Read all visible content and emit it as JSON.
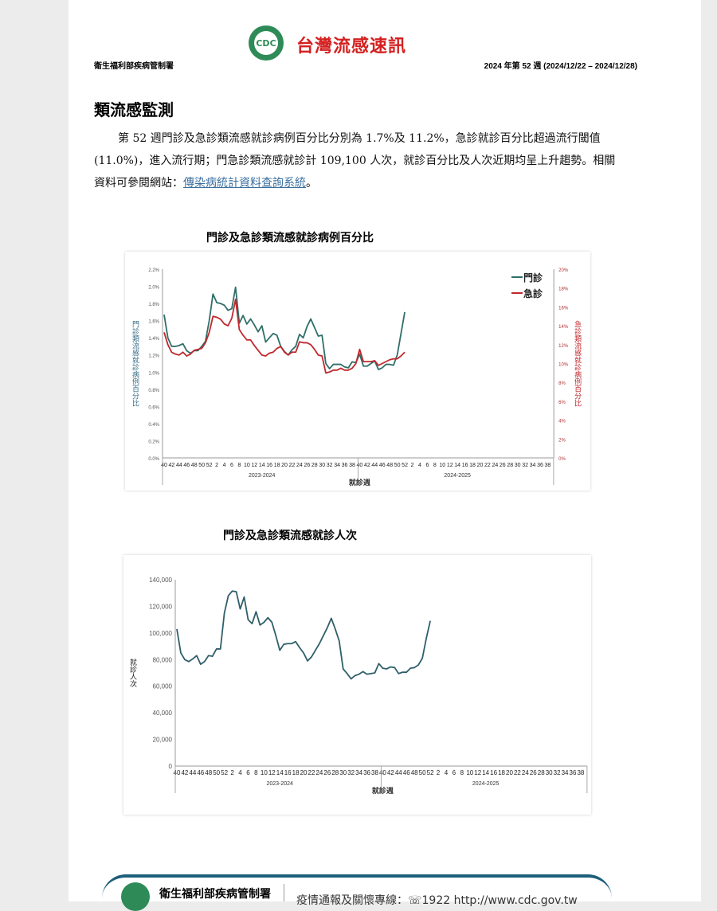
{
  "header": {
    "brand": "台灣流感速訊",
    "org": "衛生福利部疾病管制署",
    "week": "2024 年第 52 週 (2024/12/22 – 2024/12/28)",
    "logo_text": "CDC"
  },
  "section": {
    "title": "類流感監測",
    "para_before": "第 52 週門診及急診類流感就診病例百分比分別為 1.7%及 11.2%，急診就診百分比超過流行閾值(11.0%)，進入流行期；門急診類流感就診計 109,100 人次，就診百分比及人次近期均呈上升趨勢。相關資料可參閱網站：",
    "link": "傳染病統計資料查詢系統",
    "para_after": "。"
  },
  "weeks": [
    "40",
    "41",
    "42",
    "43",
    "44",
    "45",
    "46",
    "47",
    "48",
    "49",
    "50",
    "51",
    "52",
    "1",
    "2",
    "3",
    "4",
    "5",
    "6",
    "7",
    "8",
    "9",
    "10",
    "11",
    "12",
    "13",
    "14",
    "15",
    "16",
    "17",
    "18",
    "19",
    "20",
    "21",
    "22",
    "23",
    "24",
    "25",
    "26",
    "27",
    "28",
    "29",
    "30",
    "31",
    "32",
    "33",
    "34",
    "35",
    "36",
    "37",
    "38",
    "39",
    "40",
    "41",
    "42",
    "43",
    "44",
    "45",
    "46",
    "47",
    "48",
    "49",
    "50",
    "51",
    "52"
  ],
  "tick_labels": [
    "40",
    "42",
    "44",
    "46",
    "48",
    "50",
    "52",
    "2",
    "4",
    "6",
    "8",
    "10",
    "12",
    "14",
    "16",
    "18",
    "20",
    "22",
    "24",
    "26",
    "28",
    "30",
    "32",
    "34",
    "36",
    "38"
  ],
  "seasons": [
    "2023-2024",
    "2024-2025"
  ],
  "chart_data": [
    {
      "type": "line",
      "title": "門診及急診類流感就診病例百分比",
      "xlabel": "就診週",
      "ylabel": "門診類流感就診病例百分比",
      "ylabel_right": "急診類流感就診病例百分比",
      "ylim": [
        0,
        2.2
      ],
      "ylim_right": [
        0,
        20
      ],
      "yticks": [
        "0.0%",
        "0.2%",
        "0.4%",
        "0.6%",
        "0.8%",
        "1.0%",
        "1.2%",
        "1.4%",
        "1.6%",
        "1.8%",
        "2.0%",
        "2.2%"
      ],
      "yticks_right": [
        "0%",
        "2%",
        "4%",
        "6%",
        "8%",
        "10%",
        "12%",
        "14%",
        "16%",
        "18%",
        "20%"
      ],
      "legend": "top-right",
      "series": [
        {
          "name": "門診",
          "axis": "left",
          "color": "#2f6f6a",
          "values": [
            1.67,
            1.4,
            1.3,
            1.3,
            1.31,
            1.33,
            1.25,
            1.22,
            1.25,
            1.25,
            1.3,
            1.36,
            1.6,
            1.91,
            1.81,
            1.8,
            1.78,
            1.72,
            1.74,
            1.99,
            1.57,
            1.66,
            1.56,
            1.62,
            1.55,
            1.47,
            1.54,
            1.35,
            1.4,
            1.45,
            1.43,
            1.3,
            1.24,
            1.2,
            1.26,
            1.3,
            1.44,
            1.4,
            1.53,
            1.62,
            1.52,
            1.42,
            1.43,
            1.1,
            1.04,
            1.09,
            1.09,
            1.09,
            1.06,
            1.05,
            1.12,
            1.11,
            1.21,
            1.07,
            1.07,
            1.1,
            1.13,
            1.03,
            1.05,
            1.09,
            1.09,
            1.08,
            1.2,
            1.45,
            1.7
          ]
        },
        {
          "name": "急診",
          "axis": "right",
          "color": "#c0282d",
          "values": [
            13.3,
            12.0,
            11.2,
            11.0,
            10.9,
            11.2,
            10.8,
            11.0,
            11.4,
            11.5,
            11.6,
            12.2,
            13.3,
            15.0,
            14.9,
            14.7,
            14.2,
            14.0,
            14.8,
            16.8,
            13.6,
            13.0,
            12.5,
            12.5,
            11.9,
            11.4,
            10.9,
            10.8,
            11.1,
            11.2,
            11.6,
            11.8,
            11.2,
            10.9,
            11.2,
            11.2,
            12.3,
            12.2,
            12.2,
            12.0,
            11.5,
            10.9,
            10.8,
            9.0,
            9.1,
            9.3,
            9.3,
            9.5,
            9.3,
            9.3,
            9.5,
            10.0,
            11.5,
            10.2,
            10.2,
            10.2,
            10.3,
            9.8,
            10.0,
            10.2,
            10.4,
            10.5,
            10.5,
            10.8,
            11.2
          ]
        }
      ]
    },
    {
      "type": "line",
      "title": "門診及急診類流感就診人次",
      "xlabel": "就診週",
      "ylabel": "就診人次",
      "ylim": [
        0,
        140000
      ],
      "yticks": [
        "0",
        "20,000",
        "40,000",
        "60,000",
        "80,000",
        "100,000",
        "120,000",
        "140,000"
      ],
      "series": [
        {
          "color": "#2f5f6a",
          "values": [
            103000,
            85000,
            80000,
            78500,
            80500,
            83000,
            76500,
            78500,
            83000,
            82500,
            88000,
            88000,
            115000,
            128000,
            131500,
            131000,
            118000,
            127000,
            110000,
            107000,
            116000,
            106000,
            108000,
            111500,
            108000,
            98000,
            87000,
            91500,
            92000,
            92000,
            93500,
            89000,
            85000,
            79000,
            82000,
            87000,
            92000,
            98000,
            104000,
            111000,
            103000,
            94000,
            73000,
            69500,
            65500,
            68000,
            69000,
            71000,
            69000,
            69500,
            70000,
            77000,
            73500,
            73000,
            74500,
            74000,
            69500,
            70500,
            70500,
            73500,
            74000,
            76000,
            81000,
            96000,
            109100
          ]
        }
      ]
    }
  ],
  "footer": {
    "org": "衛生福利部疾病管制署",
    "line": "疫情通報及關懷專線：☏1922  http://www.cdc.gov.tw"
  }
}
